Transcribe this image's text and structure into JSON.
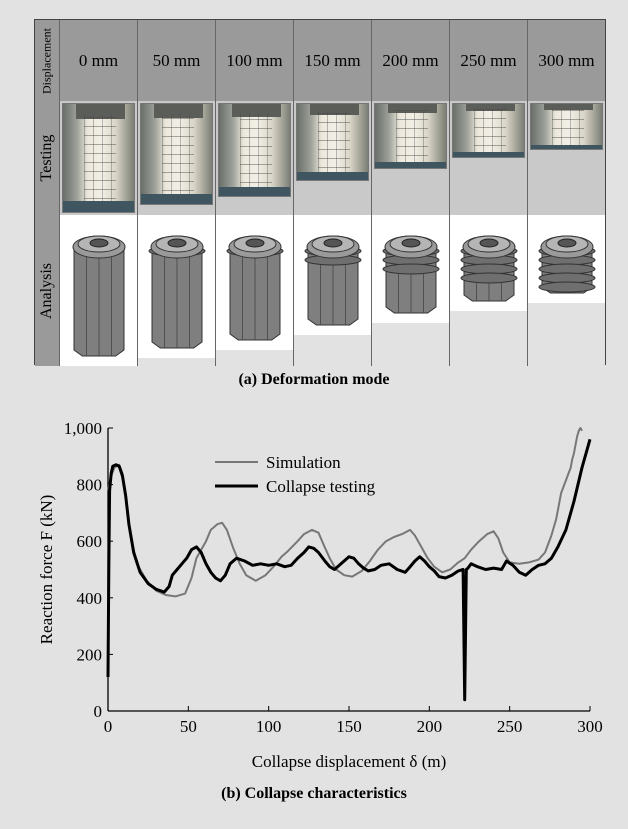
{
  "table": {
    "row_labels": {
      "header": "Displacement",
      "testing": "Testing",
      "analysis": "Analysis"
    },
    "columns": [
      "0 mm",
      "50 mm",
      "100 mm",
      "150 mm",
      "200 mm",
      "250 mm",
      "300 mm"
    ],
    "crush_fraction": [
      0.0,
      0.1,
      0.2,
      0.4,
      0.55,
      0.7,
      0.8
    ]
  },
  "caption_a": "(a) Deformation mode",
  "caption_b": "(b) Collapse characteristics",
  "chart_data": {
    "type": "line",
    "xlabel": "Collapse displacement δ (m)",
    "ylabel": "Reaction force F (kN)",
    "xlim": [
      0,
      300
    ],
    "ylim": [
      0,
      1000
    ],
    "xticks": [
      0,
      50,
      100,
      150,
      200,
      250,
      300
    ],
    "yticks": [
      0,
      200,
      400,
      600,
      800,
      1000
    ],
    "ytick_labels": [
      "0",
      "200",
      "400",
      "600",
      "800",
      "1,000"
    ],
    "legend_position": "top-center",
    "grid": false,
    "series": [
      {
        "name": "Simulation",
        "color": "#777777",
        "line_width": 2,
        "x": [
          0,
          2,
          4,
          7,
          9,
          11,
          14,
          18,
          24,
          30,
          36,
          42,
          48,
          52,
          55,
          58,
          61,
          64,
          68,
          71,
          74,
          78,
          82,
          86,
          92,
          98,
          103,
          108,
          112,
          118,
          122,
          127,
          131,
          134,
          138,
          142,
          147,
          152,
          158,
          163,
          168,
          173,
          178,
          183,
          188,
          191,
          195,
          199,
          203,
          208,
          213,
          218,
          222,
          226,
          231,
          236,
          240,
          243,
          246,
          250,
          256,
          262,
          268,
          272,
          276,
          279,
          281,
          282,
          284,
          286,
          288,
          289,
          290,
          291,
          292,
          293,
          294,
          295
        ],
        "y": [
          780,
          830,
          860,
          870,
          840,
          760,
          620,
          520,
          460,
          425,
          410,
          405,
          415,
          470,
          540,
          570,
          600,
          640,
          660,
          665,
          640,
          575,
          520,
          480,
          460,
          480,
          510,
          545,
          565,
          600,
          625,
          640,
          630,
          590,
          540,
          500,
          480,
          475,
          495,
          530,
          570,
          600,
          615,
          625,
          640,
          620,
          580,
          540,
          510,
          490,
          500,
          525,
          540,
          570,
          600,
          625,
          635,
          610,
          560,
          525,
          520,
          525,
          535,
          560,
          620,
          680,
          740,
          770,
          800,
          830,
          860,
          890,
          910,
          940,
          970,
          990,
          1000,
          990
        ]
      },
      {
        "name": "Collapse testing",
        "color": "#000000",
        "line_width": 3,
        "x": [
          0,
          0.5,
          1,
          2,
          3,
          5,
          7,
          9,
          11,
          13,
          16,
          20,
          25,
          30,
          35,
          38,
          40,
          43,
          46,
          49,
          52,
          55,
          58,
          61,
          64,
          67,
          70,
          73,
          76,
          80,
          85,
          90,
          95,
          100,
          105,
          110,
          114,
          118,
          122,
          125,
          128,
          131,
          135,
          138,
          141,
          145,
          150,
          153,
          156,
          159,
          162,
          166,
          170,
          175,
          180,
          185,
          188,
          191,
          194,
          197,
          200,
          203,
          206,
          210,
          214,
          218,
          221,
          222,
          223,
          224,
          226,
          230,
          235,
          240,
          245,
          248,
          252,
          256,
          260,
          264,
          268,
          272,
          276,
          280,
          285,
          290,
          295,
          300
        ],
        "y": [
          120,
          500,
          780,
          840,
          865,
          870,
          865,
          830,
          760,
          660,
          560,
          490,
          450,
          430,
          420,
          440,
          480,
          500,
          520,
          540,
          570,
          580,
          560,
          520,
          490,
          470,
          460,
          480,
          520,
          540,
          530,
          515,
          520,
          515,
          520,
          510,
          515,
          540,
          560,
          580,
          575,
          560,
          530,
          510,
          500,
          520,
          545,
          540,
          520,
          505,
          495,
          500,
          515,
          520,
          500,
          490,
          510,
          530,
          545,
          530,
          510,
          495,
          475,
          470,
          480,
          495,
          500,
          40,
          500,
          505,
          520,
          510,
          500,
          505,
          500,
          530,
          515,
          490,
          480,
          500,
          515,
          520,
          540,
          580,
          640,
          740,
          860,
          960
        ]
      }
    ]
  }
}
